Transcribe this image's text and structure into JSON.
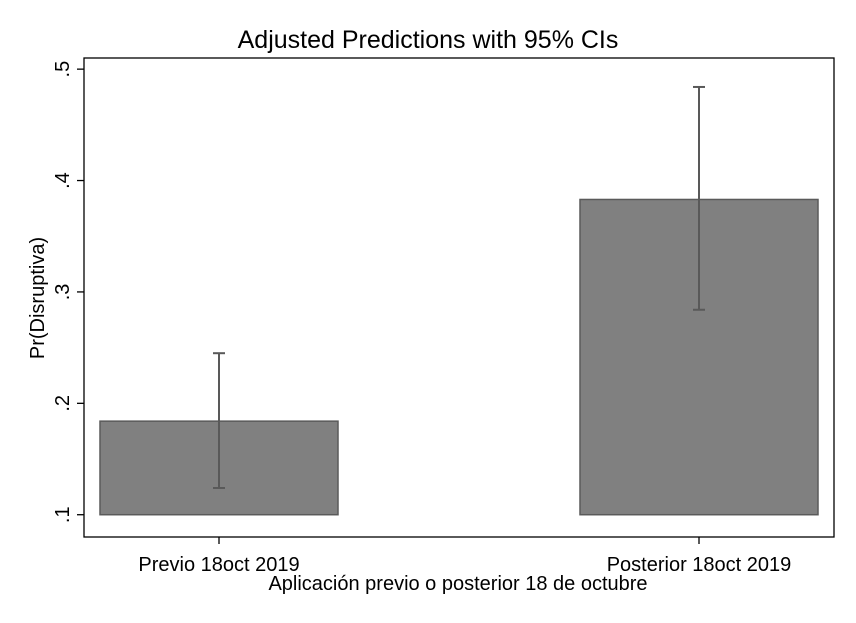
{
  "chart_data": {
    "type": "bar",
    "title": "Adjusted Predictions with 95% CIs",
    "xlabel": "Aplicación previo o posterior 18 de octubre",
    "ylabel": "Pr(Disruptiva)",
    "categories": [
      "Previo 18oct 2019",
      "Posterior 18oct 2019"
    ],
    "values": [
      0.184,
      0.383
    ],
    "ci_lower": [
      0.124,
      0.284
    ],
    "ci_upper": [
      0.245,
      0.484
    ],
    "bar_base": 0.1,
    "ylim": [
      0.08,
      0.51
    ],
    "yticks": [
      0.1,
      0.2,
      0.3,
      0.4,
      0.5
    ],
    "ytick_labels": [
      ".1",
      ".2",
      ".3",
      ".4",
      ".5"
    ],
    "grid": false,
    "legend": "none",
    "colors": {
      "bar_fill": "#808080",
      "bar_stroke": "#5a5a5a",
      "error_bar": "#595959",
      "axis": "#000000"
    }
  }
}
